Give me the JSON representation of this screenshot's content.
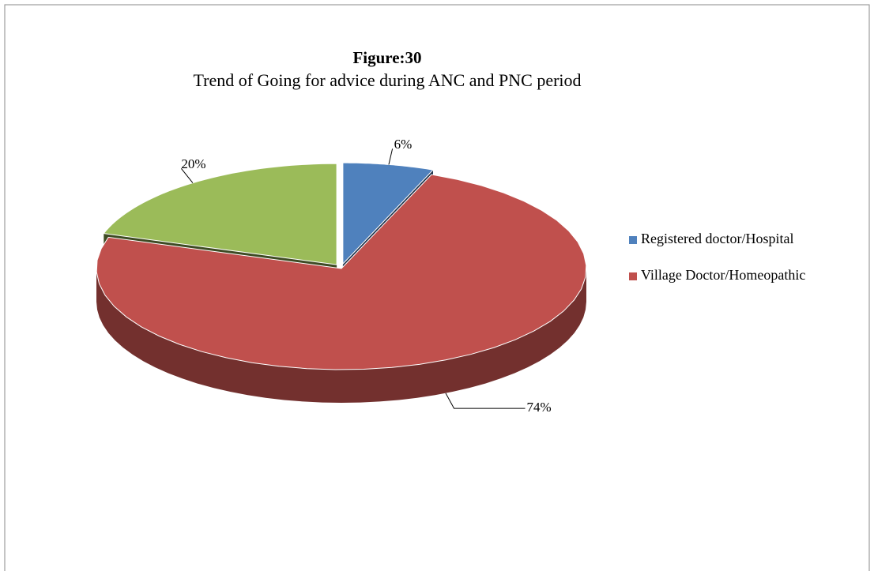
{
  "chart_data": {
    "type": "pie",
    "title": "Figure:30",
    "subtitle": "Trend of Going for advice during ANC and PNC period",
    "categories": [
      "Registered doctor/Hospital",
      "Village Doctor/Homeopathic",
      null
    ],
    "values": [
      6,
      74,
      20
    ],
    "value_labels": [
      "6%",
      "74%",
      "20%"
    ],
    "colors": [
      "#4f81bd",
      "#c0504d",
      "#9bbb59"
    ],
    "legend": "right"
  }
}
